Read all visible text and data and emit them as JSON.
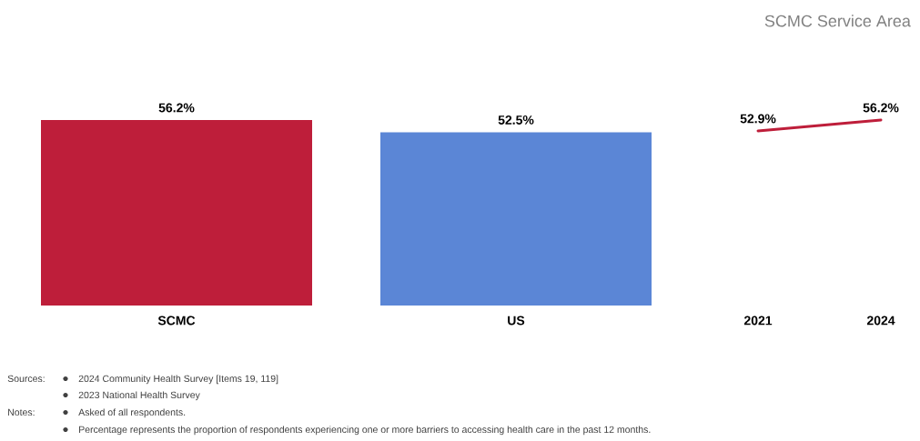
{
  "chart_data": [
    {
      "type": "bar",
      "categories": [
        "SCMC",
        "US"
      ],
      "values": [
        56.2,
        52.5
      ],
      "colors": [
        "#be1e3a",
        "#5b86d6"
      ],
      "value_labels": [
        "56.2%",
        "52.5%"
      ],
      "tick_labels": "x",
      "annotations": [
        "Sources:",
        "2024 Community Health Survey [Items 19, 119]",
        "2023 National Health Survey",
        "Notes:",
        "Asked of all respondents.",
        "Percentage represents the proportion of respondents experiencing one or more barriers to accessing health care in the past 12 months."
      ]
    },
    {
      "type": "line",
      "title": "SCMC Service Area",
      "categories": [
        "2021",
        "2024"
      ],
      "values": [
        52.9,
        56.2
      ],
      "color": "#be1e3a",
      "value_labels": [
        "52.9%",
        "56.2%"
      ],
      "tick_labels": "x",
      "marker": "none",
      "line_style": "solid"
    }
  ]
}
